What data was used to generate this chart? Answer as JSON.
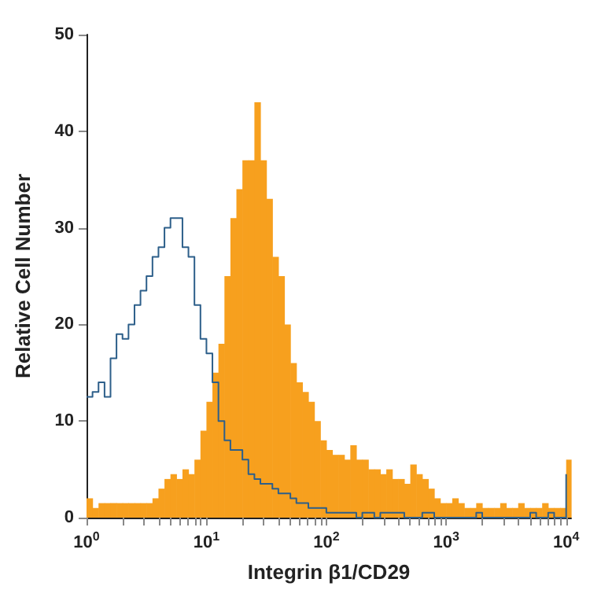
{
  "chart_data": {
    "type": "histogram",
    "xlabel": "Integrin β1/CD29",
    "ylabel": "Relative Cell Number",
    "log": "x",
    "xlim": [
      1,
      11000
    ],
    "ylim": [
      0,
      50
    ],
    "yticks": [
      0,
      10,
      20,
      30,
      40,
      50
    ],
    "xticks": [
      {
        "value": 1,
        "label": "10$^{0}$"
      },
      {
        "value": 2,
        "label": null
      },
      {
        "value": 3,
        "label": null
      },
      {
        "value": 4,
        "label": null
      },
      {
        "value": 5,
        "label": null
      },
      {
        "value": 6,
        "label": null
      },
      {
        "value": 7,
        "label": null
      },
      {
        "value": 8,
        "label": null
      },
      {
        "value": 9,
        "label": null
      },
      {
        "value": 10,
        "label": "10$^{1}$"
      },
      {
        "value": 20,
        "label": null
      },
      {
        "value": 30,
        "label": null
      },
      {
        "value": 40,
        "label": null
      },
      {
        "value": 50,
        "label": null
      },
      {
        "value": 60,
        "label": null
      },
      {
        "value": 70,
        "label": null
      },
      {
        "value": 80,
        "label": null
      },
      {
        "value": 90,
        "label": null
      },
      {
        "value": 100,
        "label": "10$^{2}$"
      },
      {
        "value": 200,
        "label": null
      },
      {
        "value": 300,
        "label": null
      },
      {
        "value": 400,
        "label": null
      },
      {
        "value": 500,
        "label": null
      },
      {
        "value": 600,
        "label": null
      },
      {
        "value": 700,
        "label": null
      },
      {
        "value": 800,
        "label": null
      },
      {
        "value": 900,
        "label": null
      },
      {
        "value": 1000,
        "label": "10$^{3}$"
      },
      {
        "value": 2000,
        "label": null
      },
      {
        "value": 3000,
        "label": null
      },
      {
        "value": 4000,
        "label": null
      },
      {
        "value": 5000,
        "label": null
      },
      {
        "value": 6000,
        "label": null
      },
      {
        "value": 7000,
        "label": null
      },
      {
        "value": 8000,
        "label": null
      },
      {
        "value": 9000,
        "label": null
      },
      {
        "value": 10000,
        "label": "10$^{4}$"
      }
    ],
    "bins": [
      1,
      1.122,
      1.259,
      1.413,
      1.585,
      1.778,
      1.995,
      2.239,
      2.512,
      2.818,
      3.162,
      3.548,
      3.981,
      4.467,
      5.012,
      5.623,
      6.31,
      7.079,
      7.943,
      8.913,
      10,
      11.22,
      12.59,
      14.13,
      15.85,
      17.78,
      19.95,
      22.39,
      25.12,
      28.18,
      31.62,
      35.48,
      39.81,
      44.67,
      50.12,
      56.23,
      63.1,
      70.79,
      79.43,
      89.13,
      100,
      112.2,
      125.9,
      141.3,
      158.5,
      177.8,
      199.5,
      223.9,
      251.2,
      281.8,
      316.2,
      354.8,
      398.1,
      446.7,
      501.2,
      562.3,
      631,
      707.9,
      794.3,
      891.3,
      1000,
      1122,
      1259,
      1413,
      1585,
      1778,
      1995,
      2239,
      2512,
      2818,
      3162,
      3548,
      3981,
      4467,
      5012,
      5623,
      6310,
      7079,
      7943,
      8913,
      10000,
      11000
    ],
    "series": [
      {
        "color": "#f7a01e",
        "values": [
          2,
          1,
          1.5,
          1.5,
          1.5,
          1.5,
          1.5,
          1.5,
          1.5,
          1.5,
          1.5,
          2,
          3,
          4,
          4.5,
          4,
          5,
          4.5,
          6,
          9,
          12,
          15,
          18,
          25,
          31,
          34,
          37,
          37,
          43,
          37,
          33,
          27,
          25,
          20,
          16,
          14,
          13,
          12,
          10,
          8,
          7,
          6.5,
          6.5,
          6,
          7.5,
          6,
          6,
          5,
          5,
          4.5,
          5,
          4,
          4,
          3.5,
          5.5,
          4.5,
          4,
          3,
          2,
          1.5,
          1.5,
          2,
          1.5,
          1,
          1,
          1.5,
          1,
          1,
          1,
          1.5,
          1,
          1,
          1.5,
          1,
          1,
          1,
          1.5,
          1,
          1,
          1,
          6
        ]
      },
      {
        "type": "step",
        "color": "#2d5f8a",
        "x": [
          1,
          1.122,
          1.259,
          1.413,
          1.585,
          1.778,
          1.995,
          2.239,
          2.512,
          2.818,
          3.162,
          3.548,
          3.981,
          4.467,
          5.012,
          5.623,
          6.31,
          7.079,
          7.943,
          8.913,
          10,
          11.22,
          12.59,
          14.13,
          15.85,
          17.78,
          19.95,
          22.39,
          25.12,
          28.18,
          31.62,
          35.48,
          39.81,
          44.67,
          50.12,
          56.23,
          63.1,
          70.79,
          79.43,
          89.13,
          100,
          112.2,
          125.9,
          141.3,
          158.5,
          177.8,
          199.5,
          223.9,
          251.2,
          281.8,
          316.2,
          354.8,
          398.1,
          446.7,
          501.2,
          562.3,
          631,
          707.9,
          794.3,
          891.3,
          1000,
          1122,
          1259,
          1413,
          1585,
          1778,
          1995,
          2239,
          2512,
          2818,
          3162,
          3548,
          3981,
          4467,
          5012,
          5623,
          6310,
          7079,
          7943,
          8913,
          10000
        ],
        "values": [
          12.5,
          13,
          14,
          12.5,
          16.5,
          19,
          18.5,
          20,
          22,
          23.5,
          25,
          27,
          28,
          30,
          31,
          31,
          28,
          27,
          22,
          18.5,
          17,
          14,
          10,
          8,
          7,
          7,
          6,
          4.5,
          4,
          3.5,
          3.5,
          3,
          2.5,
          2.5,
          2,
          1.5,
          1.5,
          1,
          1,
          1,
          0.5,
          0.5,
          0.5,
          0.5,
          0.5,
          0,
          0.5,
          0.5,
          0,
          0.5,
          0.5,
          0.5,
          0.5,
          0,
          0,
          0,
          0.5,
          0.5,
          0,
          0,
          0,
          0,
          0,
          0,
          0,
          0.5,
          0,
          0,
          0,
          0,
          0,
          0,
          0,
          0,
          0.5,
          0,
          0,
          0.5,
          0,
          0,
          4.5
        ]
      }
    ]
  }
}
